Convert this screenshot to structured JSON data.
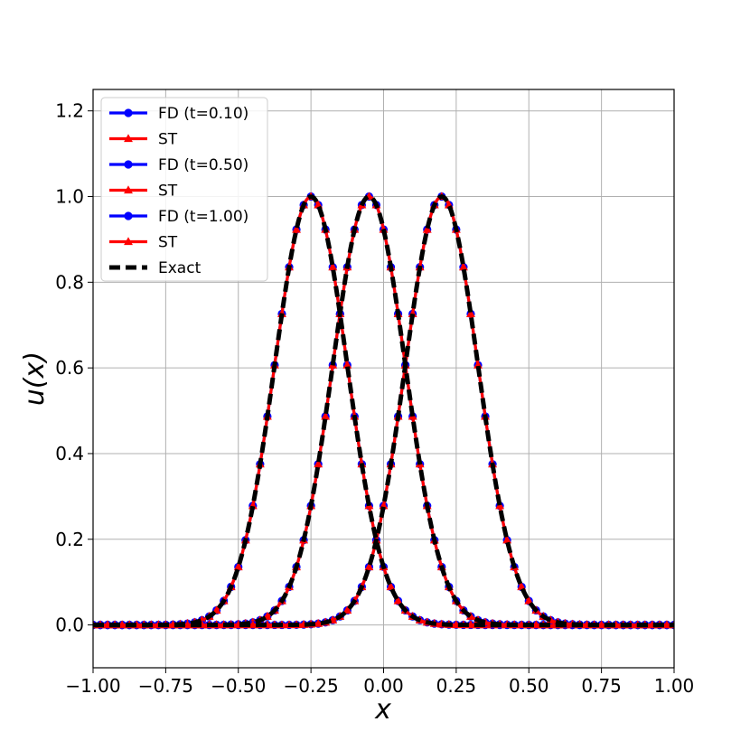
{
  "chart_data": {
    "type": "line",
    "xlabel": "x",
    "ylabel": "u(x)",
    "xlim": [
      -1.0,
      1.0
    ],
    "ylim": [
      -0.1,
      1.25
    ],
    "grid": true,
    "legend_position": "top-left",
    "x_ticks": [
      "−1.00",
      "−0.75",
      "−0.50",
      "−0.25",
      "0.00",
      "0.25",
      "0.50",
      "0.75",
      "1.00"
    ],
    "y_ticks": [
      "0.0",
      "0.2",
      "0.4",
      "0.6",
      "0.8",
      "1.0",
      "1.2"
    ],
    "gaussian_width": 0.125,
    "series": [
      {
        "name": "FD (t=0.10)",
        "kind": "FD",
        "color": "#0000ff",
        "marker": "circle",
        "center": -0.25,
        "peak": 1.0
      },
      {
        "name": "ST",
        "kind": "ST",
        "color": "#ff0000",
        "marker": "triangle",
        "center": -0.25,
        "peak": 1.0
      },
      {
        "name": "FD (t=0.50)",
        "kind": "FD",
        "color": "#0000ff",
        "marker": "circle",
        "center": -0.05,
        "peak": 1.0
      },
      {
        "name": "ST",
        "kind": "ST",
        "color": "#ff0000",
        "marker": "triangle",
        "center": -0.05,
        "peak": 1.0
      },
      {
        "name": "FD (t=1.00)",
        "kind": "FD",
        "color": "#0000ff",
        "marker": "circle",
        "center": 0.2,
        "peak": 1.0
      },
      {
        "name": "ST",
        "kind": "ST",
        "color": "#ff0000",
        "marker": "triangle",
        "center": 0.2,
        "peak": 1.0
      },
      {
        "name": "Exact",
        "kind": "Exact",
        "color": "#000000",
        "marker": "none",
        "centers": [
          -0.25,
          -0.05,
          0.2
        ],
        "peak": 1.0
      }
    ]
  }
}
